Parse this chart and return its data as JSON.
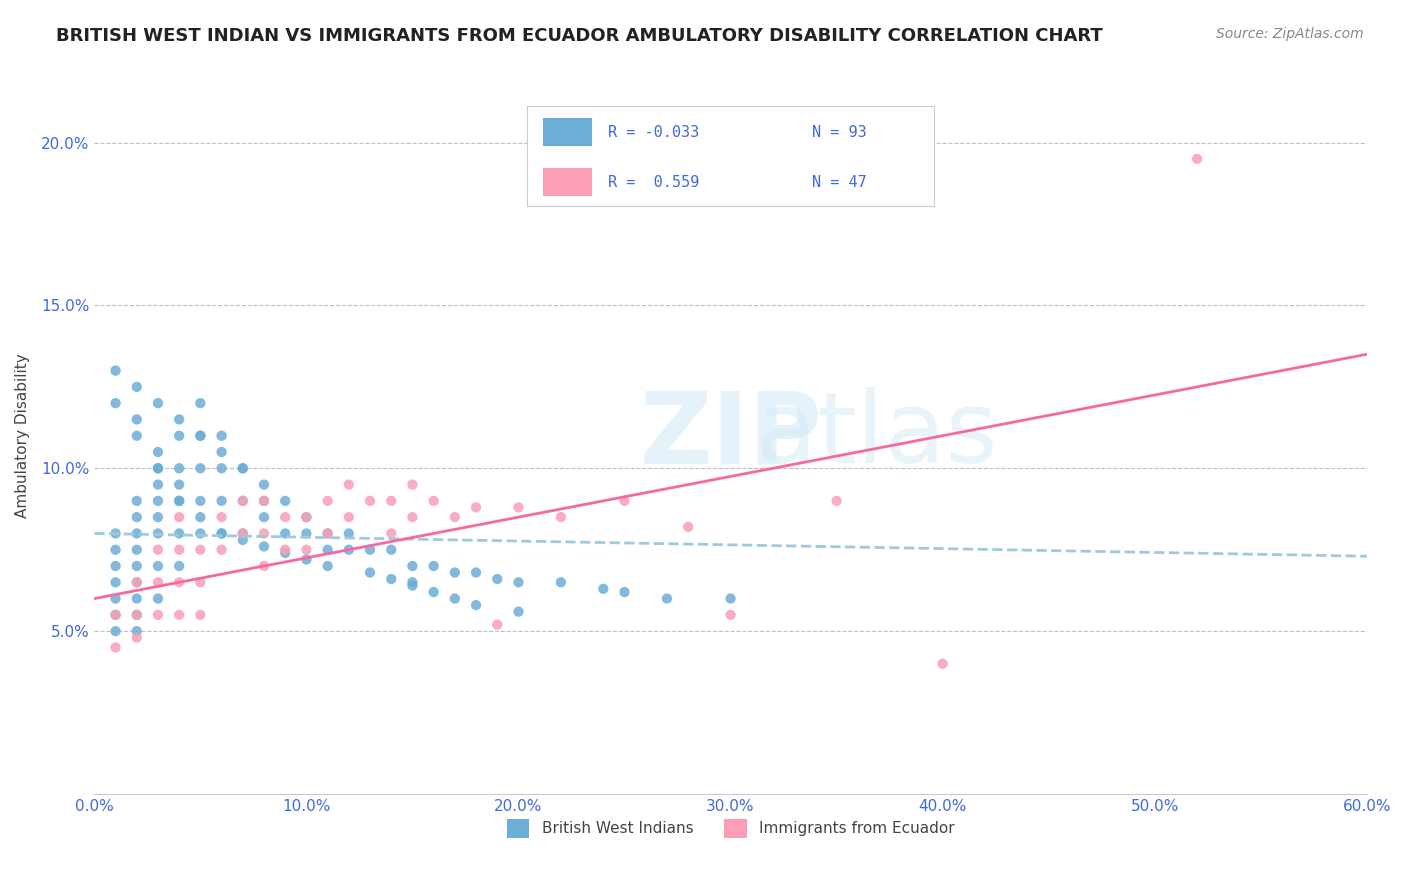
{
  "title": "BRITISH WEST INDIAN VS IMMIGRANTS FROM ECUADOR AMBULATORY DISABILITY CORRELATION CHART",
  "source": "Source: ZipAtlas.com",
  "ylabel": "Ambulatory Disability",
  "xlabel": "",
  "xlim": [
    0.0,
    0.6
  ],
  "ylim": [
    0.0,
    0.22
  ],
  "xticks": [
    0.0,
    0.1,
    0.2,
    0.3,
    0.4,
    0.5,
    0.6
  ],
  "xticklabels": [
    "0.0%",
    "10.0%",
    "20.0%",
    "30.0%",
    "40.0%",
    "50.0%",
    "60.0%"
  ],
  "yticks": [
    0.05,
    0.1,
    0.15,
    0.2
  ],
  "yticklabels": [
    "5.0%",
    "10.0%",
    "15.0%",
    "20.0%"
  ],
  "legend_r1": "R = -0.033",
  "legend_n1": "N = 93",
  "legend_r2": "R =  0.559",
  "legend_n2": "N = 47",
  "color_blue": "#6baed6",
  "color_pink": "#fa9fb5",
  "color_blue_dark": "#4292c6",
  "color_pink_dark": "#f768a1",
  "color_line_blue": "#9ecae1",
  "color_line_pink": "#f768a1",
  "color_axis": "#4169E1",
  "watermark": "ZIPatlas",
  "background_color": "#ffffff",
  "grid_color": "#c0c0c0",
  "blue_scatter_x": [
    0.01,
    0.01,
    0.01,
    0.01,
    0.01,
    0.01,
    0.01,
    0.02,
    0.02,
    0.02,
    0.02,
    0.02,
    0.02,
    0.02,
    0.02,
    0.02,
    0.03,
    0.03,
    0.03,
    0.03,
    0.03,
    0.03,
    0.03,
    0.04,
    0.04,
    0.04,
    0.04,
    0.04,
    0.05,
    0.05,
    0.05,
    0.05,
    0.05,
    0.06,
    0.06,
    0.06,
    0.06,
    0.07,
    0.07,
    0.07,
    0.08,
    0.08,
    0.09,
    0.09,
    0.1,
    0.1,
    0.11,
    0.11,
    0.12,
    0.12,
    0.13,
    0.14,
    0.15,
    0.15,
    0.16,
    0.17,
    0.18,
    0.19,
    0.2,
    0.22,
    0.24,
    0.25,
    0.27,
    0.3,
    0.01,
    0.02,
    0.02,
    0.03,
    0.03,
    0.04,
    0.04,
    0.05,
    0.06,
    0.07,
    0.08,
    0.09,
    0.1,
    0.11,
    0.13,
    0.14,
    0.15,
    0.16,
    0.17,
    0.18,
    0.2,
    0.01,
    0.02,
    0.03,
    0.04,
    0.05,
    0.06,
    0.07,
    0.08
  ],
  "blue_scatter_y": [
    0.08,
    0.075,
    0.07,
    0.065,
    0.06,
    0.055,
    0.05,
    0.09,
    0.085,
    0.08,
    0.075,
    0.07,
    0.065,
    0.06,
    0.055,
    0.05,
    0.1,
    0.095,
    0.09,
    0.085,
    0.08,
    0.07,
    0.06,
    0.11,
    0.1,
    0.09,
    0.08,
    0.07,
    0.12,
    0.11,
    0.1,
    0.09,
    0.08,
    0.11,
    0.1,
    0.09,
    0.08,
    0.1,
    0.09,
    0.08,
    0.09,
    0.085,
    0.09,
    0.08,
    0.085,
    0.08,
    0.08,
    0.075,
    0.08,
    0.075,
    0.075,
    0.075,
    0.07,
    0.065,
    0.07,
    0.068,
    0.068,
    0.066,
    0.065,
    0.065,
    0.063,
    0.062,
    0.06,
    0.06,
    0.12,
    0.115,
    0.11,
    0.105,
    0.1,
    0.095,
    0.09,
    0.085,
    0.08,
    0.078,
    0.076,
    0.074,
    0.072,
    0.07,
    0.068,
    0.066,
    0.064,
    0.062,
    0.06,
    0.058,
    0.056,
    0.13,
    0.125,
    0.12,
    0.115,
    0.11,
    0.105,
    0.1,
    0.095
  ],
  "pink_scatter_x": [
    0.01,
    0.01,
    0.02,
    0.02,
    0.02,
    0.03,
    0.03,
    0.03,
    0.04,
    0.04,
    0.04,
    0.04,
    0.05,
    0.05,
    0.05,
    0.06,
    0.06,
    0.07,
    0.07,
    0.08,
    0.08,
    0.08,
    0.09,
    0.09,
    0.1,
    0.1,
    0.11,
    0.11,
    0.12,
    0.12,
    0.13,
    0.14,
    0.14,
    0.15,
    0.15,
    0.16,
    0.17,
    0.18,
    0.19,
    0.2,
    0.22,
    0.25,
    0.28,
    0.3,
    0.35,
    0.4,
    0.52
  ],
  "pink_scatter_y": [
    0.055,
    0.045,
    0.065,
    0.055,
    0.048,
    0.075,
    0.065,
    0.055,
    0.085,
    0.075,
    0.065,
    0.055,
    0.075,
    0.065,
    0.055,
    0.085,
    0.075,
    0.09,
    0.08,
    0.09,
    0.08,
    0.07,
    0.085,
    0.075,
    0.085,
    0.075,
    0.09,
    0.08,
    0.095,
    0.085,
    0.09,
    0.09,
    0.08,
    0.095,
    0.085,
    0.09,
    0.085,
    0.088,
    0.052,
    0.088,
    0.085,
    0.09,
    0.082,
    0.055,
    0.09,
    0.04,
    0.195
  ],
  "blue_line_x": [
    0.0,
    0.6
  ],
  "blue_line_y": [
    0.08,
    0.073
  ],
  "pink_line_x": [
    0.0,
    0.6
  ],
  "pink_line_y": [
    0.06,
    0.135
  ]
}
